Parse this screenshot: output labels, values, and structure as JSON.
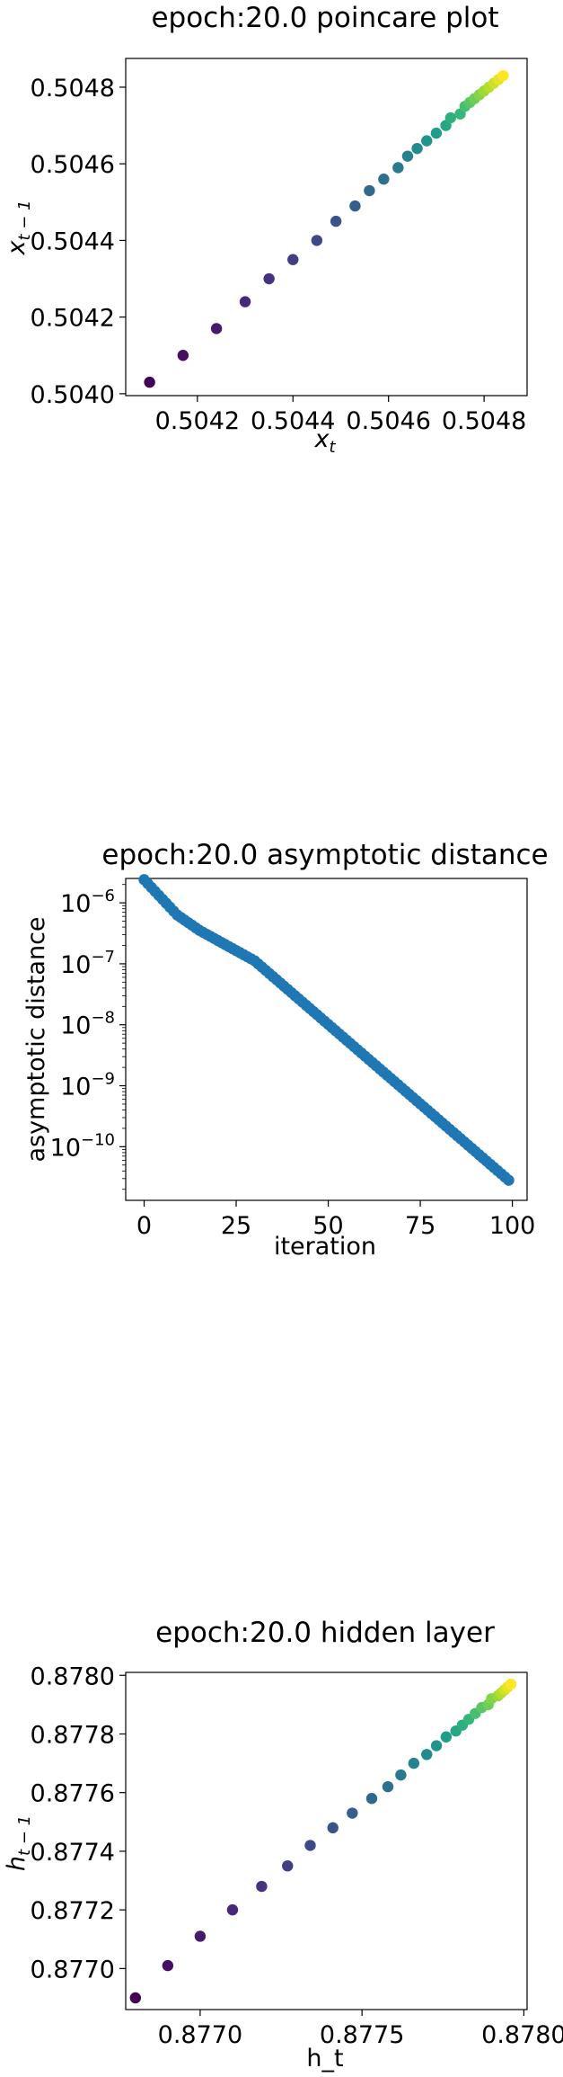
{
  "chart_data": [
    {
      "type": "scatter",
      "title": "epoch:20.0 poincare plot",
      "xlabel_base": "x",
      "xlabel_sub": "t",
      "ylabel_base": "x",
      "ylabel_sub": "t − 1",
      "xlim": [
        0.50405,
        0.50489
      ],
      "ylim": [
        0.503995,
        0.504875
      ],
      "xticks": [
        "0.5042",
        "0.5044",
        "0.5046",
        "0.5048"
      ],
      "yticks": [
        "0.5040",
        "0.5042",
        "0.5044",
        "0.5046",
        "0.5048"
      ],
      "colormap": [
        "#440154",
        "#482878",
        "#3e4989",
        "#31688e",
        "#26828e",
        "#1f9e89",
        "#35b779",
        "#6ece58",
        "#b5de2b",
        "#fde725"
      ],
      "points": [
        {
          "x": 0.5041,
          "y": 0.50403
        },
        {
          "x": 0.50417,
          "y": 0.5041
        },
        {
          "x": 0.50424,
          "y": 0.50417
        },
        {
          "x": 0.5043,
          "y": 0.50424
        },
        {
          "x": 0.50435,
          "y": 0.5043
        },
        {
          "x": 0.5044,
          "y": 0.50435
        },
        {
          "x": 0.50445,
          "y": 0.5044
        },
        {
          "x": 0.50449,
          "y": 0.50445
        },
        {
          "x": 0.50453,
          "y": 0.50449
        },
        {
          "x": 0.50456,
          "y": 0.50453
        },
        {
          "x": 0.50459,
          "y": 0.50456
        },
        {
          "x": 0.50462,
          "y": 0.50459
        },
        {
          "x": 0.50464,
          "y": 0.50462
        },
        {
          "x": 0.50466,
          "y": 0.50464
        },
        {
          "x": 0.50468,
          "y": 0.50466
        },
        {
          "x": 0.5047,
          "y": 0.50468
        },
        {
          "x": 0.50472,
          "y": 0.5047
        },
        {
          "x": 0.50473,
          "y": 0.50472
        },
        {
          "x": 0.50475,
          "y": 0.50473
        },
        {
          "x": 0.50476,
          "y": 0.50475
        },
        {
          "x": 0.50477,
          "y": 0.50476
        },
        {
          "x": 0.50478,
          "y": 0.50477
        },
        {
          "x": 0.50479,
          "y": 0.50478
        },
        {
          "x": 0.5048,
          "y": 0.50479
        },
        {
          "x": 0.50481,
          "y": 0.5048
        },
        {
          "x": 0.50482,
          "y": 0.50481
        },
        {
          "x": 0.50483,
          "y": 0.50482
        },
        {
          "x": 0.50484,
          "y": 0.50483
        }
      ]
    },
    {
      "type": "scatter",
      "scale": "log",
      "title": "epoch:20.0 asymptotic distance",
      "xlabel": "iteration",
      "ylabel": "asymptotic distance",
      "xlim": [
        -5,
        104
      ],
      "ylim_log10": [
        -10.88,
        -5.6
      ],
      "xticks": [
        "0",
        "25",
        "50",
        "75",
        "100"
      ],
      "yticks": [
        "10",
        "10",
        "10",
        "10",
        "10"
      ],
      "ytick_exps": [
        "−6",
        "−7",
        "−8",
        "−9",
        "−10"
      ],
      "color": "#1f77b4",
      "x_range": [
        0,
        99
      ],
      "log10_y_knots": [
        [
          0,
          -5.62
        ],
        [
          9,
          -6.2
        ],
        [
          15,
          -6.45
        ],
        [
          30,
          -6.95
        ],
        [
          99,
          -10.55
        ]
      ]
    },
    {
      "type": "scatter",
      "title": "epoch:20.0 hidden layer",
      "xlabel": "h_t",
      "ylabel_base": "h",
      "ylabel_sub": "t − 1",
      "xlim": [
        0.87677,
        0.87801
      ],
      "ylim": [
        0.87686,
        0.87801
      ],
      "xticks": [
        "0.8770",
        "0.8775",
        "0.8780"
      ],
      "yticks": [
        "0.8770",
        "0.8772",
        "0.8774",
        "0.8776",
        "0.8778",
        "0.8780"
      ],
      "points": [
        {
          "x": 0.8768,
          "y": 0.8769
        },
        {
          "x": 0.8769,
          "y": 0.87701
        },
        {
          "x": 0.877,
          "y": 0.87711
        },
        {
          "x": 0.8771,
          "y": 0.8772
        },
        {
          "x": 0.87719,
          "y": 0.87728
        },
        {
          "x": 0.87727,
          "y": 0.87735
        },
        {
          "x": 0.87734,
          "y": 0.87742
        },
        {
          "x": 0.87741,
          "y": 0.87748
        },
        {
          "x": 0.87747,
          "y": 0.87753
        },
        {
          "x": 0.87753,
          "y": 0.87758
        },
        {
          "x": 0.87758,
          "y": 0.87762
        },
        {
          "x": 0.87762,
          "y": 0.87766
        },
        {
          "x": 0.87766,
          "y": 0.8777
        },
        {
          "x": 0.8777,
          "y": 0.87773
        },
        {
          "x": 0.87773,
          "y": 0.87776
        },
        {
          "x": 0.87776,
          "y": 0.87779
        },
        {
          "x": 0.87779,
          "y": 0.87781
        },
        {
          "x": 0.87781,
          "y": 0.87783
        },
        {
          "x": 0.87783,
          "y": 0.87785
        },
        {
          "x": 0.87785,
          "y": 0.87787
        },
        {
          "x": 0.87787,
          "y": 0.87789
        },
        {
          "x": 0.87789,
          "y": 0.8779
        },
        {
          "x": 0.8779,
          "y": 0.87792
        },
        {
          "x": 0.87792,
          "y": 0.87793
        },
        {
          "x": 0.87793,
          "y": 0.87794
        },
        {
          "x": 0.87794,
          "y": 0.87795
        },
        {
          "x": 0.87795,
          "y": 0.87796
        },
        {
          "x": 0.87796,
          "y": 0.87797
        }
      ]
    }
  ]
}
